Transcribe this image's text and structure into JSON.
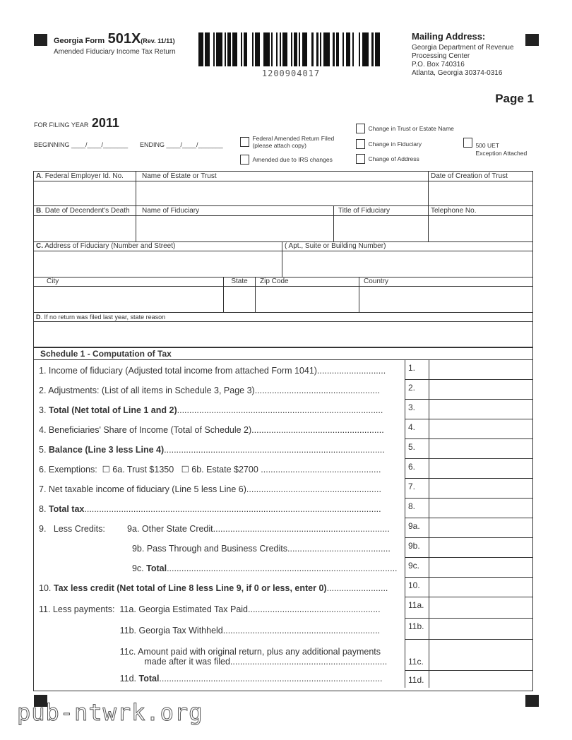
{
  "header": {
    "form_prefix": "Georgia Form",
    "form_number": "501X",
    "revision": "(Rev. 11/11)",
    "subtitle": "Amended Fiduciary Income Tax Return",
    "barcode_number": "1200904017"
  },
  "mailing": {
    "title": "Mailing Address:",
    "lines": [
      "Georgia Department of Revenue",
      "Processing Center",
      "P.O. Box 740316",
      "Atlanta, Georgia 30374-0316"
    ]
  },
  "page_label": "Page 1",
  "filing": {
    "label": "FOR FILING YEAR",
    "year": "2011",
    "beginning": "BEGINNING ____/____/_______",
    "ending": "ENDING ____/____/_______"
  },
  "checkboxes": {
    "federal_amended": "Federal Amended Return Filed",
    "federal_amended_note": "(please attach copy)",
    "irs_changes": "Amended due to IRS changes",
    "change_name": "Change in Trust or Estate Name",
    "change_fiduciary": "Change in Fiduciary",
    "change_address": "Change of Address",
    "uet": "500 UET",
    "uet_note": "Exception Attached"
  },
  "fields": {
    "a_letter": "A",
    "a": ". Federal Employer Id. No.",
    "estate_name": "Name of Estate or Trust",
    "creation_date": "Date of Creation of Trust",
    "b_letter": "B",
    "b": ". Date of Decendent's Death",
    "fiduciary_name": "Name of Fiduciary",
    "fiduciary_title": "Title of Fiduciary",
    "telephone": "Telephone No.",
    "c_letter": "C.",
    "c": " Address of Fiduciary (Number and Street)",
    "apt": "( Apt., Suite or Building Number)",
    "city": "City",
    "state": "State",
    "zip": "Zip Code",
    "country": "Country",
    "d_letter": "D",
    "d": ".  If no return was filed last year, state reason"
  },
  "schedule": {
    "title": "Schedule 1 - Computation of Tax",
    "lines": [
      {
        "pre": "1. Income of fiduciary (Adjusted total income from attached Form 1041)",
        "bold": "",
        "post": "............................",
        "num": "1."
      },
      {
        "pre": "2. Adjustments: (List of all items in Schedule 3, Page 3)",
        "bold": "",
        "post": "...................................................",
        "num": "2."
      },
      {
        "pre": "3. ",
        "bold": "Total (Net total of Line 1 and 2)",
        "post": "....................................................................................",
        "num": "3."
      },
      {
        "pre": "4. Beneficiaries' Share of Income (Total of Schedule 2)",
        "bold": "",
        "post": "......................................................",
        "num": "4."
      },
      {
        "pre": "5. ",
        "bold": "Balance (Line 3 less Line 4)",
        "post": "..........................................................................................",
        "num": "5."
      },
      {
        "pre": "6. Exemptions:  ☐ 6a. Trust $1350   ☐ 6b. Estate $2700",
        "bold": "",
        "post": " .................................................",
        "num": "6."
      },
      {
        "pre": "7. Net taxable income of fiduciary (Line 5 less Line 6)",
        "bold": "",
        "post": ".......................................................",
        "num": "7."
      },
      {
        "pre": "8. ",
        "bold": "Total tax",
        "post": ".........................................................................................................................",
        "num": "8."
      },
      {
        "pre": "9.   Less Credits:         9a. Other State Credit",
        "bold": "",
        "post": "........................................................................",
        "num": "9a."
      },
      {
        "pre": "                                      9b. Pass Through and Business Credits",
        "bold": "",
        "post": "..........................................",
        "num": "9b."
      },
      {
        "pre": "                                      9c. ",
        "bold": "Total",
        "post": "..............................................................................................",
        "num": "9c."
      },
      {
        "pre": "10. ",
        "bold": "Tax less credit (Net total of Line 8 less Line 9, if 0 or less, enter 0)",
        "post": ".........................",
        "num": "10."
      },
      {
        "pre": "11. Less payments:  11a. Georgia Estimated Tax Paid",
        "bold": "",
        "post": "......................................................",
        "num": "11a."
      },
      {
        "pre": "                                 11b. Georgia Tax Withheld",
        "bold": "",
        "post": "................................................................",
        "num": "11b."
      },
      {
        "pre": "                                 11c. Amount paid with original return, plus any additional payments\n                                           made after it was filed",
        "bold": "",
        "post": "................................................................",
        "num": "11c."
      },
      {
        "pre": "                                 11d. ",
        "bold": "Total",
        "post": "...........................................................................................",
        "num": "11d."
      }
    ]
  },
  "watermark": "pub-ntwrk.org"
}
